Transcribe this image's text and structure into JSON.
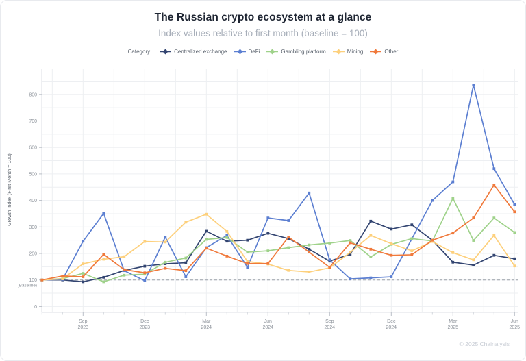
{
  "header": {
    "title": "The Russian crypto ecosystem at a glance",
    "subtitle": "Index values relative to first month (baseline = 100)"
  },
  "legend": {
    "label": "Category"
  },
  "footer": {
    "copyright": "© 2025 Chainalysis"
  },
  "chart_data": {
    "type": "line",
    "title": "The Russian crypto ecosystem at a glance",
    "subtitle": "Index values relative to first month (baseline = 100)",
    "ylabel": "Growth Index (First Month = 100)",
    "baseline": 100,
    "baseline_label": "(Baseline)",
    "ylim": [
      0,
      850
    ],
    "ytick_step": 100,
    "grid_step": 50,
    "legend_position": "top",
    "grid": true,
    "months": [
      "Jul 2023",
      "Aug 2023",
      "Sep 2023",
      "Oct 2023",
      "Nov 2023",
      "Dec 2023",
      "Jan 2024",
      "Feb 2024",
      "Mar 2024",
      "Apr 2024",
      "May 2024",
      "Jun 2024",
      "Jul 2024",
      "Aug 2024",
      "Sep 2024",
      "Oct 2024",
      "Nov 2024",
      "Dec 2024",
      "Jan 2025",
      "Feb 2025",
      "Mar 2025",
      "Apr 2025",
      "May 2025",
      "Jun 2025"
    ],
    "x_ticks": [
      {
        "index": 2,
        "month": "Sep",
        "year": "2023"
      },
      {
        "index": 5,
        "month": "Dec",
        "year": "2023"
      },
      {
        "index": 8,
        "month": "Mar",
        "year": "2024"
      },
      {
        "index": 11,
        "month": "Jun",
        "year": "2024"
      },
      {
        "index": 14,
        "month": "Sep",
        "year": "2024"
      },
      {
        "index": 17,
        "month": "Dec",
        "year": "2024"
      },
      {
        "index": 20,
        "month": "Mar",
        "year": "2025"
      },
      {
        "index": 23,
        "month": "Jun",
        "year": "2025"
      }
    ],
    "series": [
      {
        "name": "Centralized exchange",
        "color": "#334571",
        "values": [
          100,
          100,
          93,
          110,
          136,
          152,
          161,
          165,
          284,
          246,
          250,
          276,
          256,
          216,
          171,
          197,
          322,
          292,
          308,
          250,
          167,
          156,
          193,
          180
        ]
      },
      {
        "name": "DeFi",
        "color": "#5c7fd1",
        "values": [
          100,
          102,
          246,
          351,
          135,
          97,
          262,
          112,
          222,
          268,
          148,
          334,
          324,
          428,
          176,
          104,
          108,
          112,
          255,
          400,
          470,
          835,
          520,
          385
        ]
      },
      {
        "name": "Gambling platform",
        "color": "#9fd28a",
        "values": [
          100,
          105,
          125,
          93,
          118,
          122,
          167,
          183,
          253,
          260,
          205,
          210,
          222,
          232,
          239,
          249,
          187,
          234,
          256,
          247,
          408,
          249,
          334,
          279
        ]
      },
      {
        "name": "Mining",
        "color": "#fdd07c",
        "values": [
          100,
          104,
          161,
          178,
          188,
          245,
          243,
          318,
          348,
          283,
          170,
          160,
          136,
          130,
          146,
          204,
          268,
          237,
          210,
          245,
          203,
          176,
          268,
          153
        ]
      },
      {
        "name": "Other",
        "color": "#f0793b",
        "values": [
          100,
          115,
          112,
          197,
          139,
          127,
          144,
          135,
          220,
          190,
          162,
          162,
          262,
          205,
          148,
          240,
          216,
          193,
          195,
          250,
          277,
          334,
          458,
          357
        ]
      }
    ],
    "colors": {
      "gridline": "#edeff2",
      "axis": "#dcdfe4",
      "tick": "#b9bec6",
      "tick_label": "#8b9199",
      "baseline_dash": "#9aa0a8"
    }
  }
}
